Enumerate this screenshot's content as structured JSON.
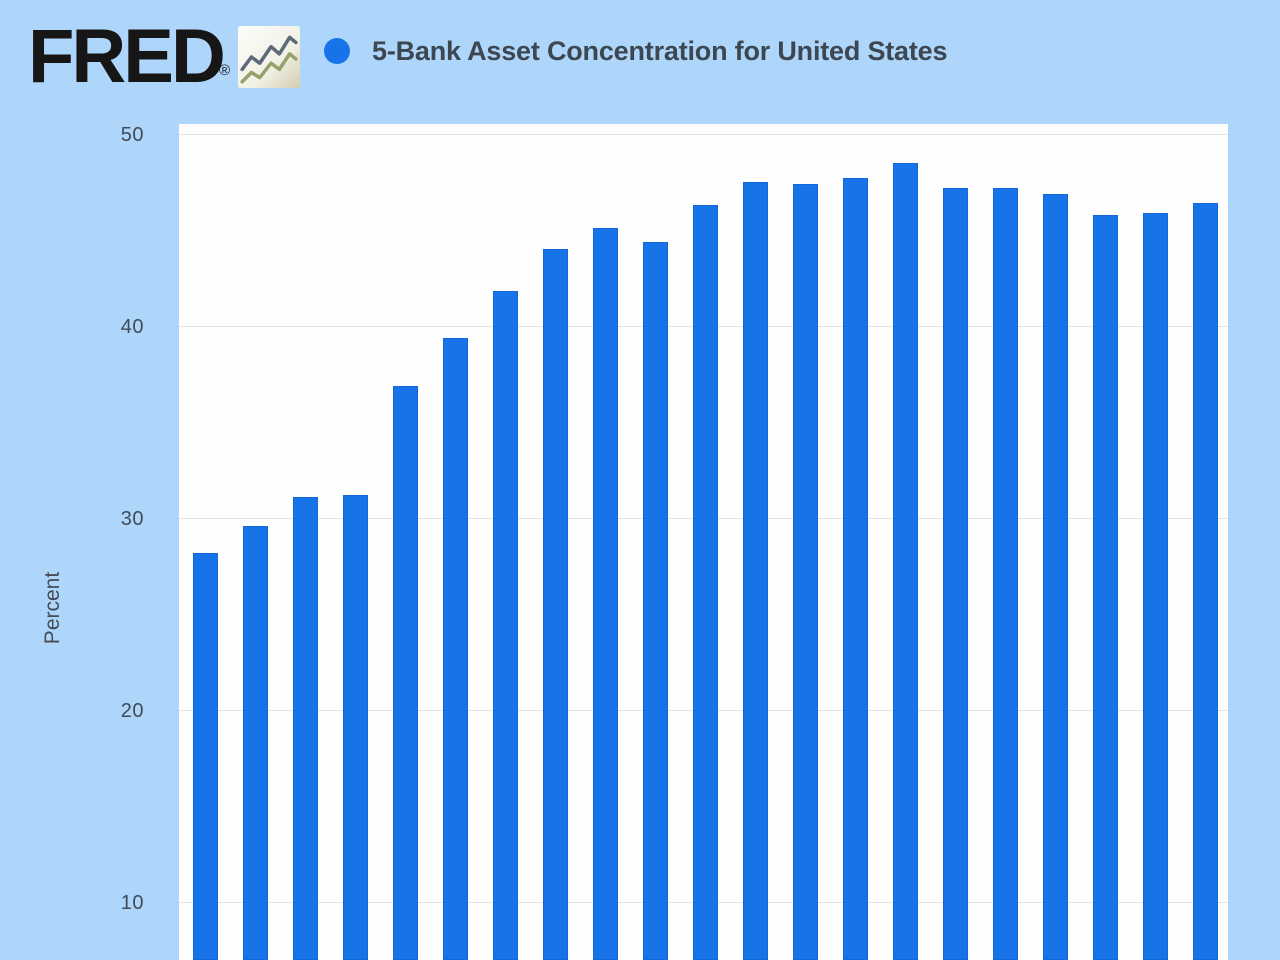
{
  "header": {
    "logo_text": "FRED",
    "registered_mark": "®",
    "logo_icon": "line-chart-icon",
    "legend_marker": "circle",
    "title": "5-Bank Asset Concentration for United States"
  },
  "axis": {
    "ylabel": "Percent",
    "ytick_labels": [
      "50",
      "40",
      "30",
      "20",
      "10"
    ]
  },
  "chart_data": {
    "type": "bar",
    "title": "5-Bank Asset Concentration for United States",
    "xlabel": "",
    "ylabel": "Percent",
    "yticks": [
      50,
      40,
      30,
      20,
      10
    ],
    "ylim_visible": [
      7,
      50.5
    ],
    "grid": "horizontal",
    "legend_position": "top-left",
    "x_tick_labels_visible": false,
    "bar_count": 21,
    "values": [
      28.2,
      29.6,
      31.1,
      31.2,
      36.9,
      39.4,
      41.8,
      44.0,
      45.1,
      44.4,
      46.3,
      47.5,
      47.4,
      47.7,
      48.5,
      47.2,
      47.2,
      46.9,
      45.8,
      45.9,
      46.4
    ],
    "series": [
      {
        "name": "5-Bank Asset Concentration for United States",
        "marker": "circle",
        "color": "#1674e8"
      }
    ]
  },
  "colors": {
    "page_bg": "#aed6fa",
    "plot_bg": "#fefefe",
    "bar": "#1674e8",
    "gridline": "#e4e4e4",
    "title_text": "#3d4751",
    "tick_text": "#414b57",
    "logo_text": "#161616"
  }
}
